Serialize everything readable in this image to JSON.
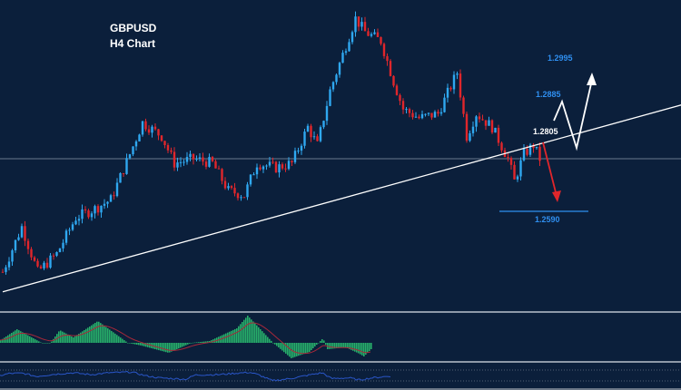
{
  "chart_data": {
    "type": "candlestick",
    "title": "GBPUSD",
    "subtitle": "H4 Chart",
    "symbol": "GBPUSD",
    "timeframe": "H4",
    "ylim": [
      1.2332,
      1.3152
    ],
    "bar_count": 170,
    "price_path": [
      [
        0,
        1.2429
      ],
      [
        6,
        1.2549
      ],
      [
        11,
        1.2429
      ],
      [
        17,
        1.2477
      ],
      [
        23,
        1.2573
      ],
      [
        29,
        1.2597
      ],
      [
        34,
        1.2621
      ],
      [
        40,
        1.2742
      ],
      [
        44,
        1.2826
      ],
      [
        50,
        1.279
      ],
      [
        54,
        1.2718
      ],
      [
        60,
        1.273
      ],
      [
        66,
        1.2718
      ],
      [
        71,
        1.2645
      ],
      [
        76,
        1.2633
      ],
      [
        80,
        1.2718
      ],
      [
        86,
        1.2706
      ],
      [
        91,
        1.2718
      ],
      [
        96,
        1.2814
      ],
      [
        99,
        1.2766
      ],
      [
        103,
        1.2911
      ],
      [
        107,
        1.3007
      ],
      [
        111,
        1.3103
      ],
      [
        114,
        1.3067
      ],
      [
        119,
        1.3043
      ],
      [
        123,
        1.2935
      ],
      [
        126,
        1.2862
      ],
      [
        131,
        1.2838
      ],
      [
        137,
        1.285
      ],
      [
        143,
        1.2959
      ],
      [
        146,
        1.279
      ],
      [
        149,
        1.285
      ],
      [
        154,
        1.2814
      ],
      [
        159,
        1.273
      ],
      [
        161,
        1.267
      ],
      [
        164,
        1.2742
      ],
      [
        167,
        1.2766
      ],
      [
        169,
        1.273
      ]
    ],
    "trendline": {
      "start": [
        0,
        1.2376
      ],
      "end": [
        214,
        1.2874
      ]
    },
    "horizontal_line": 1.273,
    "levels": [
      {
        "label": "1.2995",
        "value": 1.2995
      },
      {
        "label": "1.2885",
        "value": 1.2885
      },
      {
        "label": "1.2805",
        "value": 1.2805
      },
      {
        "label": "1.2590",
        "value": 1.259
      }
    ],
    "colors": {
      "background": "#0b1f3b",
      "bull": "#2fa8f0",
      "bear": "#e0262b",
      "level_text": "#2f8ff0",
      "macd_hist": "#27ae6a",
      "macd_signal": "#a8283a",
      "rsi": "#2a56c8"
    },
    "macd_histogram": [
      [
        0,
        3
      ],
      [
        18,
        15
      ],
      [
        45,
        0
      ],
      [
        55,
        0
      ],
      [
        65,
        14
      ],
      [
        80,
        6
      ],
      [
        107,
        24
      ],
      [
        140,
        0
      ],
      [
        155,
        -3
      ],
      [
        185,
        -11
      ],
      [
        210,
        0
      ],
      [
        230,
        2
      ],
      [
        260,
        16
      ],
      [
        272,
        30
      ],
      [
        300,
        0
      ],
      [
        320,
        -17
      ],
      [
        340,
        -10
      ],
      [
        350,
        0
      ],
      [
        355,
        5
      ],
      [
        360,
        -7
      ],
      [
        380,
        -5
      ],
      [
        395,
        -12
      ],
      [
        400,
        -15
      ],
      [
        410,
        -5
      ]
    ],
    "rsi_path": [
      [
        0,
        55
      ],
      [
        10,
        70
      ],
      [
        25,
        72
      ],
      [
        40,
        50
      ],
      [
        60,
        65
      ],
      [
        80,
        75
      ],
      [
        100,
        62
      ],
      [
        120,
        75
      ],
      [
        145,
        80
      ],
      [
        160,
        55
      ],
      [
        175,
        40
      ],
      [
        205,
        30
      ],
      [
        215,
        60
      ],
      [
        240,
        62
      ],
      [
        260,
        72
      ],
      [
        275,
        78
      ],
      [
        285,
        60
      ],
      [
        300,
        20
      ],
      [
        320,
        35
      ],
      [
        345,
        65
      ],
      [
        355,
        75
      ],
      [
        365,
        35
      ],
      [
        385,
        40
      ],
      [
        395,
        25
      ],
      [
        410,
        40
      ],
      [
        430,
        52
      ]
    ]
  }
}
